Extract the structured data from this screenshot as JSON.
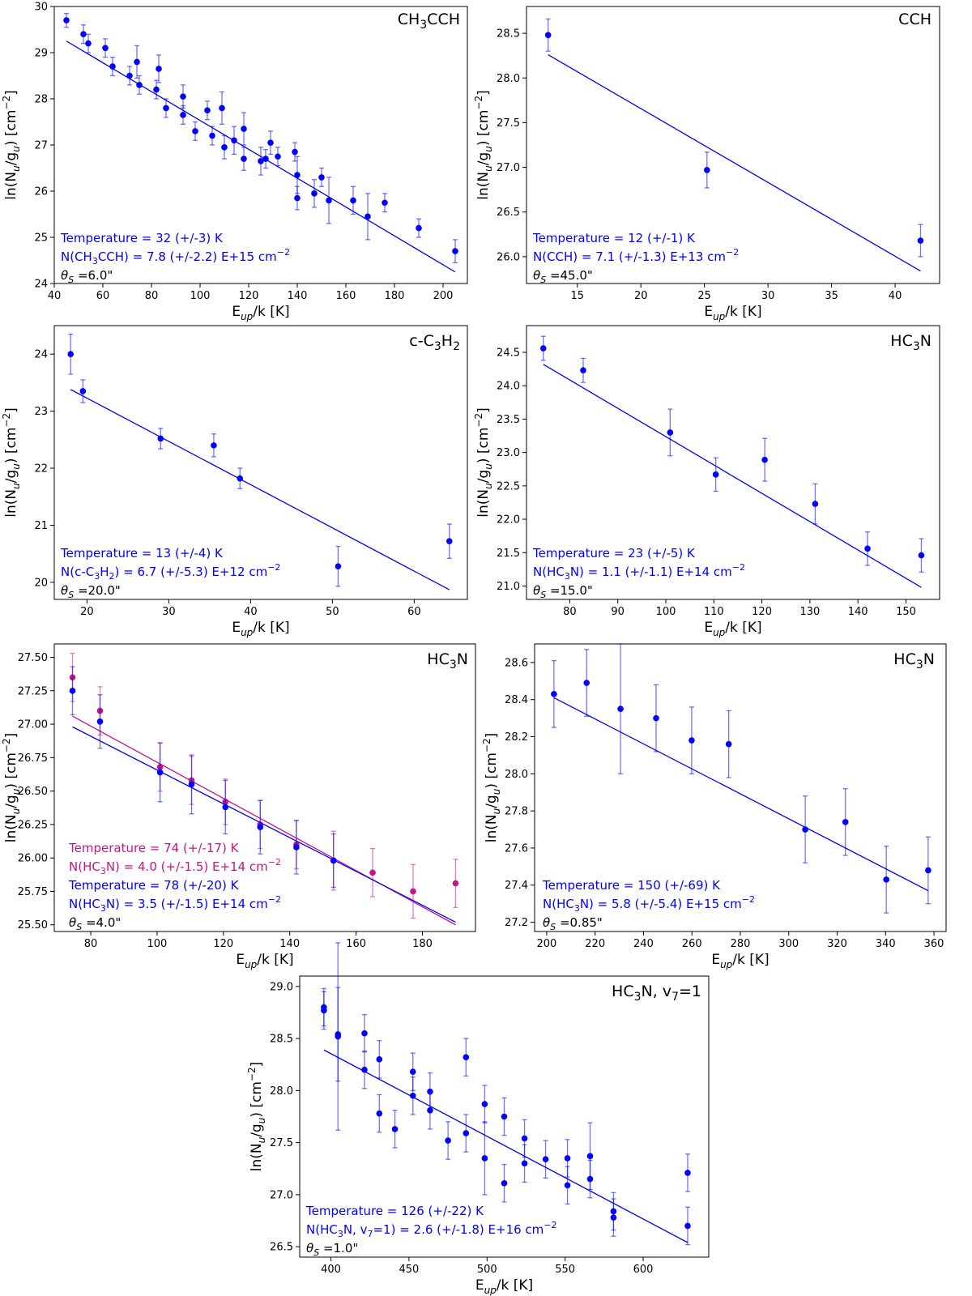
{
  "colors": {
    "blue": "#0000ff",
    "magenta": "#c71585",
    "black": "#000000"
  },
  "chart_data": [
    {
      "type": "scatter",
      "title": "CH3CCH",
      "xlabel": "E_up/k [K]",
      "ylabel": "ln(N_u/g_u) [cm^-2]",
      "xlim": [
        40,
        210
      ],
      "ylim": [
        24,
        30
      ],
      "xticks": [
        40,
        60,
        80,
        100,
        120,
        140,
        160,
        180,
        200
      ],
      "yticks": [
        24,
        25,
        26,
        27,
        28,
        29,
        30
      ],
      "series": [
        {
          "name": "CH3CCH",
          "color": "#0000ff",
          "x": [
            45,
            52,
            54,
            61,
            64,
            71,
            74,
            75,
            82,
            83,
            86,
            93,
            93,
            98,
            103,
            105,
            109,
            110,
            114,
            118,
            118,
            125,
            127,
            129,
            132,
            139,
            140,
            140,
            147,
            150,
            153,
            163,
            169,
            176,
            190,
            205
          ],
          "y": [
            29.7,
            29.4,
            29.2,
            29.1,
            28.7,
            28.5,
            28.8,
            28.3,
            28.2,
            28.65,
            27.8,
            28.05,
            27.65,
            27.3,
            27.75,
            27.2,
            27.8,
            26.95,
            27.1,
            27.35,
            26.7,
            26.65,
            26.7,
            27.05,
            26.75,
            26.85,
            26.35,
            25.85,
            25.95,
            26.3,
            25.8,
            25.8,
            25.45,
            25.75,
            25.2,
            24.7
          ],
          "err": [
            0.15,
            0.2,
            0.2,
            0.2,
            0.2,
            0.2,
            0.35,
            0.2,
            0.2,
            0.3,
            0.2,
            0.25,
            0.2,
            0.2,
            0.2,
            0.2,
            0.35,
            0.25,
            0.3,
            0.35,
            0.25,
            0.3,
            0.2,
            0.25,
            0.2,
            0.2,
            0.4,
            0.25,
            0.3,
            0.2,
            0.5,
            0.3,
            0.5,
            0.2,
            0.2,
            0.25
          ],
          "fit": {
            "x": [
              45,
              205
            ],
            "y": [
              29.25,
              24.25
            ]
          }
        }
      ],
      "annotations": [
        "Temperature = 32 (+/-3) K",
        "N(CH3CCH) = 7.8 (+/-2.2) E+15 cm^-2",
        "θS =6.0\""
      ]
    },
    {
      "type": "scatter",
      "title": "CCH",
      "xlabel": "E_up/k [K]",
      "ylabel": "ln(N_u/g_u) [cm^-2]",
      "xlim": [
        11,
        43.5
      ],
      "ylim": [
        25.7,
        28.8
      ],
      "xticks": [
        15,
        20,
        25,
        30,
        35,
        40
      ],
      "yticks": [
        26.0,
        26.5,
        27.0,
        27.5,
        28.0,
        28.5
      ],
      "series": [
        {
          "name": "CCH",
          "color": "#0000ff",
          "x": [
            12.7,
            25.2,
            42
          ],
          "y": [
            28.48,
            26.97,
            26.18
          ],
          "err": [
            0.18,
            0.2,
            0.18
          ],
          "fit": {
            "x": [
              12.7,
              42
            ],
            "y": [
              28.26,
              25.84
            ]
          }
        }
      ],
      "annotations": [
        "Temperature = 12 (+/-1) K",
        "N(CCH) = 7.1 (+/-1.3) E+13 cm^-2",
        "θS =45.0\""
      ]
    },
    {
      "type": "scatter",
      "title": "c-C3H2",
      "xlabel": "E_up/k [K]",
      "ylabel": "ln(N_u/g_u) [cm^-2]",
      "xlim": [
        16,
        66.5
      ],
      "ylim": [
        19.7,
        24.5
      ],
      "xticks": [
        20,
        30,
        40,
        50,
        60
      ],
      "yticks": [
        20,
        21,
        22,
        23,
        24
      ],
      "series": [
        {
          "name": "c-C3H2",
          "color": "#0000ff",
          "x": [
            18,
            19.5,
            29,
            35.5,
            38.7,
            50.7,
            64.3
          ],
          "y": [
            24.0,
            23.35,
            22.52,
            22.4,
            21.82,
            20.28,
            20.72
          ],
          "err": [
            0.35,
            0.2,
            0.18,
            0.2,
            0.18,
            0.35,
            0.3
          ],
          "fit": {
            "x": [
              18,
              64.3
            ],
            "y": [
              23.38,
              19.87
            ]
          }
        }
      ],
      "annotations": [
        "Temperature = 13 (+/-4) K",
        "N(c-C3H2) = 6.7 (+/-5.3) E+12 cm^-2",
        "θS =20.0\""
      ]
    },
    {
      "type": "scatter",
      "title": "HC3N",
      "xlabel": "E_up/k [K]",
      "ylabel": "ln(N_u/g_u) [cm^-2]",
      "xlim": [
        71,
        157
      ],
      "ylim": [
        20.8,
        24.9
      ],
      "xticks": [
        80,
        90,
        100,
        110,
        120,
        130,
        140,
        150
      ],
      "yticks": [
        21.0,
        21.5,
        22.0,
        22.5,
        23.0,
        23.5,
        24.0,
        24.5
      ],
      "series": [
        {
          "name": "HC3N",
          "color": "#0000ff",
          "x": [
            74.5,
            82.8,
            100.9,
            110.4,
            120.6,
            131.1,
            142.0,
            153.2
          ],
          "y": [
            24.56,
            24.23,
            23.3,
            22.67,
            22.89,
            22.23,
            21.56,
            21.46
          ],
          "err": [
            0.18,
            0.18,
            0.35,
            0.25,
            0.32,
            0.3,
            0.25,
            0.25
          ],
          "fit": {
            "x": [
              74.5,
              153.2
            ],
            "y": [
              24.32,
              20.98
            ]
          }
        }
      ],
      "annotations": [
        "Temperature = 23 (+/-5) K",
        "N(HC3N) = 1.1 (+/-1.1) E+14 cm^-2",
        "θS =15.0\""
      ]
    },
    {
      "type": "scatter",
      "title": "HC3N",
      "xlabel": "E_up/k [K]",
      "ylabel": "ln(N_u/g_u) [cm^-2]",
      "xlim": [
        69,
        196
      ],
      "ylim": [
        25.45,
        27.6
      ],
      "xticks": [
        80,
        100,
        120,
        140,
        160,
        180
      ],
      "yticks": [
        25.5,
        25.75,
        26.0,
        26.25,
        26.5,
        26.75,
        27.0,
        27.25,
        27.5
      ],
      "series": [
        {
          "name": "magenta",
          "color": "#c71585",
          "x": [
            74.5,
            82.8,
            100.9,
            110.4,
            120.6,
            131.1,
            142.0,
            153.2,
            165.0,
            177.2,
            190.0
          ],
          "y": [
            27.35,
            27.1,
            26.68,
            26.58,
            26.42,
            26.25,
            26.1,
            25.98,
            25.89,
            25.75,
            25.81
          ],
          "err": [
            0.18,
            0.18,
            0.18,
            0.18,
            0.17,
            0.18,
            0.18,
            0.22,
            0.18,
            0.2,
            0.18
          ],
          "fit": {
            "x": [
              74.5,
              190.0
            ],
            "y": [
              27.06,
              25.5
            ]
          }
        },
        {
          "name": "blue",
          "color": "#0000ff",
          "x": [
            74.5,
            82.8,
            100.9,
            110.4,
            120.6,
            131.1,
            142.0,
            153.2
          ],
          "y": [
            27.25,
            27.02,
            26.64,
            26.55,
            26.38,
            26.23,
            26.08,
            25.98
          ],
          "err": [
            0.18,
            0.2,
            0.22,
            0.22,
            0.2,
            0.2,
            0.2,
            0.2
          ],
          "fit": {
            "x": [
              74.5,
              190.0
            ],
            "y": [
              26.98,
              25.52
            ]
          }
        }
      ],
      "annotations": [
        "Temperature = 74 (+/-17) K",
        "N(HC3N) = 4.0 (+/-1.5) E+14 cm^-2",
        "Temperature = 78 (+/-20) K",
        "N(HC3N) = 3.5 (+/-1.5) E+14 cm^-2",
        "θS =4.0\""
      ]
    },
    {
      "type": "scatter",
      "title": "HC3N",
      "xlabel": "E_up/k [K]",
      "ylabel": "ln(N_u/g_u) [cm^-2]",
      "xlim": [
        195,
        365
      ],
      "ylim": [
        27.15,
        28.7
      ],
      "xticks": [
        200,
        220,
        240,
        260,
        280,
        300,
        320,
        340,
        360
      ],
      "yticks": [
        27.2,
        27.4,
        27.6,
        27.8,
        28.0,
        28.2,
        28.4,
        28.6
      ],
      "series": [
        {
          "name": "HC3N",
          "color": "#0000ff",
          "x": [
            203,
            216.5,
            230.5,
            245.2,
            259.9,
            275.2,
            306.8,
            323.4,
            340.3,
            357.6
          ],
          "y": [
            28.43,
            28.49,
            28.35,
            28.3,
            28.18,
            28.16,
            27.7,
            27.74,
            27.43,
            27.48
          ],
          "err": [
            0.18,
            0.18,
            0.35,
            0.18,
            0.18,
            0.18,
            0.18,
            0.18,
            0.18,
            0.18
          ],
          "fit": {
            "x": [
              203,
              357.6
            ],
            "y": [
              28.41,
              27.37
            ]
          }
        }
      ],
      "annotations": [
        "Temperature = 150 (+/-69) K",
        "N(HC3N) = 5.8 (+/-5.4) E+15 cm^-2",
        "θS =0.85\""
      ]
    },
    {
      "type": "scatter",
      "title": "HC3N, v7=1",
      "xlabel": "E_up/k [K]",
      "ylabel": "ln(N_u/g_u) [cm^-2]",
      "xlim": [
        380,
        642
      ],
      "ylim": [
        26.4,
        29.1
      ],
      "xticks": [
        400,
        450,
        500,
        550,
        600
      ],
      "yticks": [
        26.5,
        27.0,
        27.5,
        28.0,
        28.5,
        29.0
      ],
      "series": [
        {
          "name": "HC3N, v7=1",
          "color": "#0000ff",
          "x": [
            395.5,
            395.5,
            404.5,
            404.5,
            421.5,
            421.5,
            431,
            431,
            441,
            452.5,
            452.5,
            463.5,
            463.5,
            475,
            486.5,
            486.5,
            498.5,
            498.5,
            511,
            511,
            524,
            524,
            537.5,
            551.5,
            551.5,
            566,
            566,
            581,
            581,
            628.5,
            628.5
          ],
          "y": [
            28.8,
            28.77,
            28.54,
            28.52,
            28.55,
            28.2,
            28.3,
            27.78,
            27.63,
            28.18,
            27.95,
            27.99,
            27.81,
            27.52,
            28.32,
            27.59,
            27.87,
            27.35,
            27.75,
            27.11,
            27.54,
            27.3,
            27.34,
            27.35,
            27.09,
            27.37,
            27.15,
            26.84,
            26.78,
            27.21,
            26.7
          ],
          "err": [
            0.18,
            0.18,
            0.45,
            0.9,
            0.18,
            0.18,
            0.18,
            0.18,
            0.18,
            0.18,
            0.18,
            0.18,
            0.18,
            0.18,
            0.18,
            0.18,
            0.18,
            0.35,
            0.18,
            0.18,
            0.18,
            0.18,
            0.18,
            0.18,
            0.18,
            0.32,
            0.18,
            0.18,
            0.18,
            0.18,
            0.18
          ],
          "fit": {
            "x": [
              395.5,
              628.5
            ],
            "y": [
              28.39,
              26.54
            ]
          }
        }
      ],
      "annotations": [
        "Temperature = 126 (+/-22) K",
        "N(HC3N, v7=1) = 2.6 (+/-1.8) E+16 cm^-2",
        "θS =1.0\""
      ]
    }
  ]
}
